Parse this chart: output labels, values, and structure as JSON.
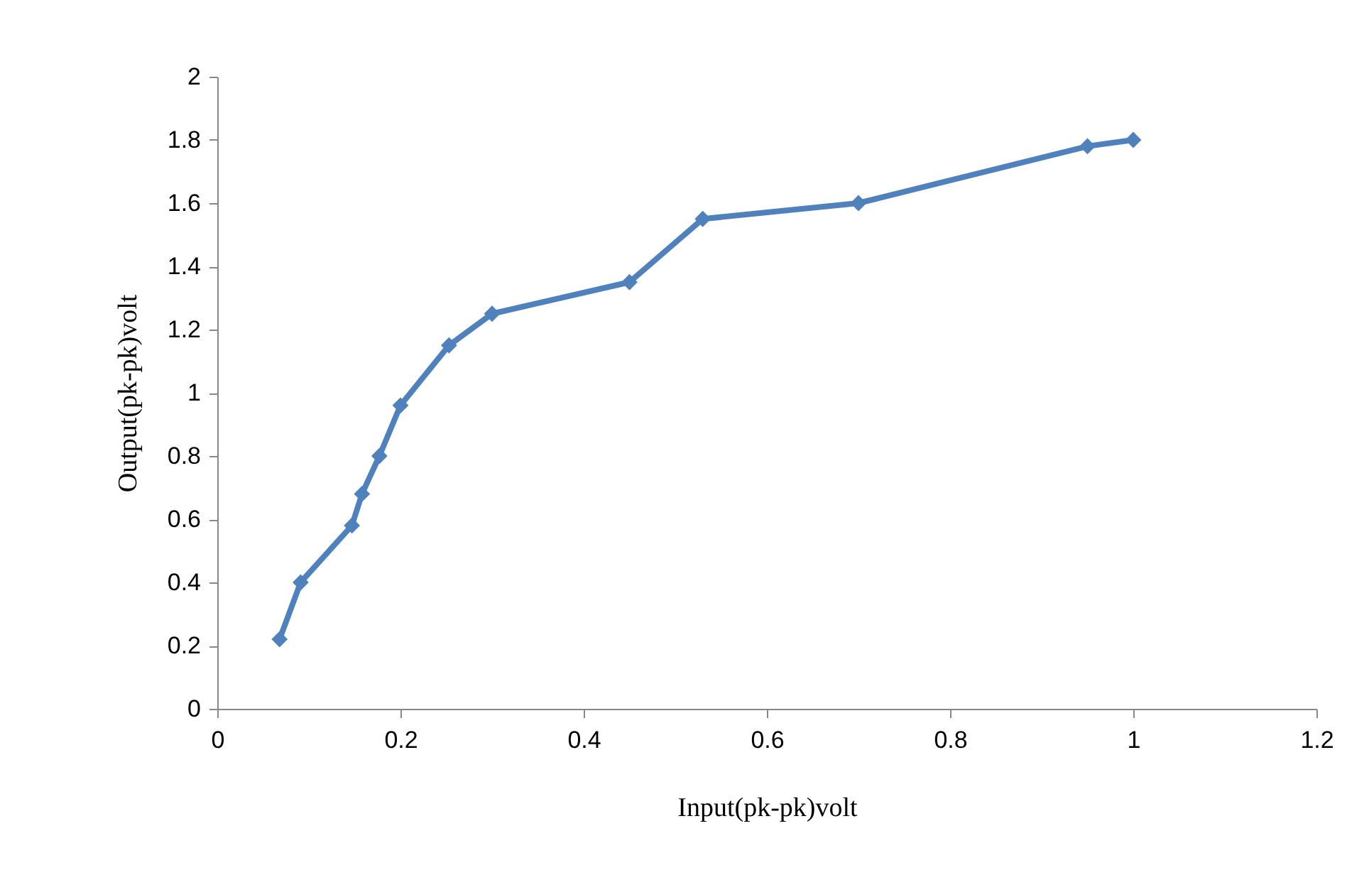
{
  "chart_data": {
    "type": "line",
    "xlabel": "Input(pk-pk)volt",
    "ylabel": "Output(pk-pk)volt",
    "x": [
      0.068,
      0.091,
      0.147,
      0.158,
      0.177,
      0.2,
      0.253,
      0.3,
      0.45,
      0.53,
      0.7,
      0.95,
      1.0
    ],
    "series": [
      {
        "color": "#4f81bd",
        "values": [
          0.22,
          0.4,
          0.58,
          0.68,
          0.8,
          0.96,
          1.15,
          1.25,
          1.35,
          1.55,
          1.6,
          1.78,
          1.8
        ]
      }
    ],
    "xlim": [
      0,
      1.2
    ],
    "xticks": [
      0,
      0.2,
      0.4,
      0.6,
      0.8,
      1,
      1.2
    ],
    "ylim": [
      0,
      2
    ],
    "yticks": [
      0,
      0.2,
      0.4,
      0.6,
      0.8,
      1,
      1.2,
      1.4,
      1.6,
      1.8,
      2
    ],
    "marker": "diamond",
    "line_style": "solid",
    "grid": false
  }
}
